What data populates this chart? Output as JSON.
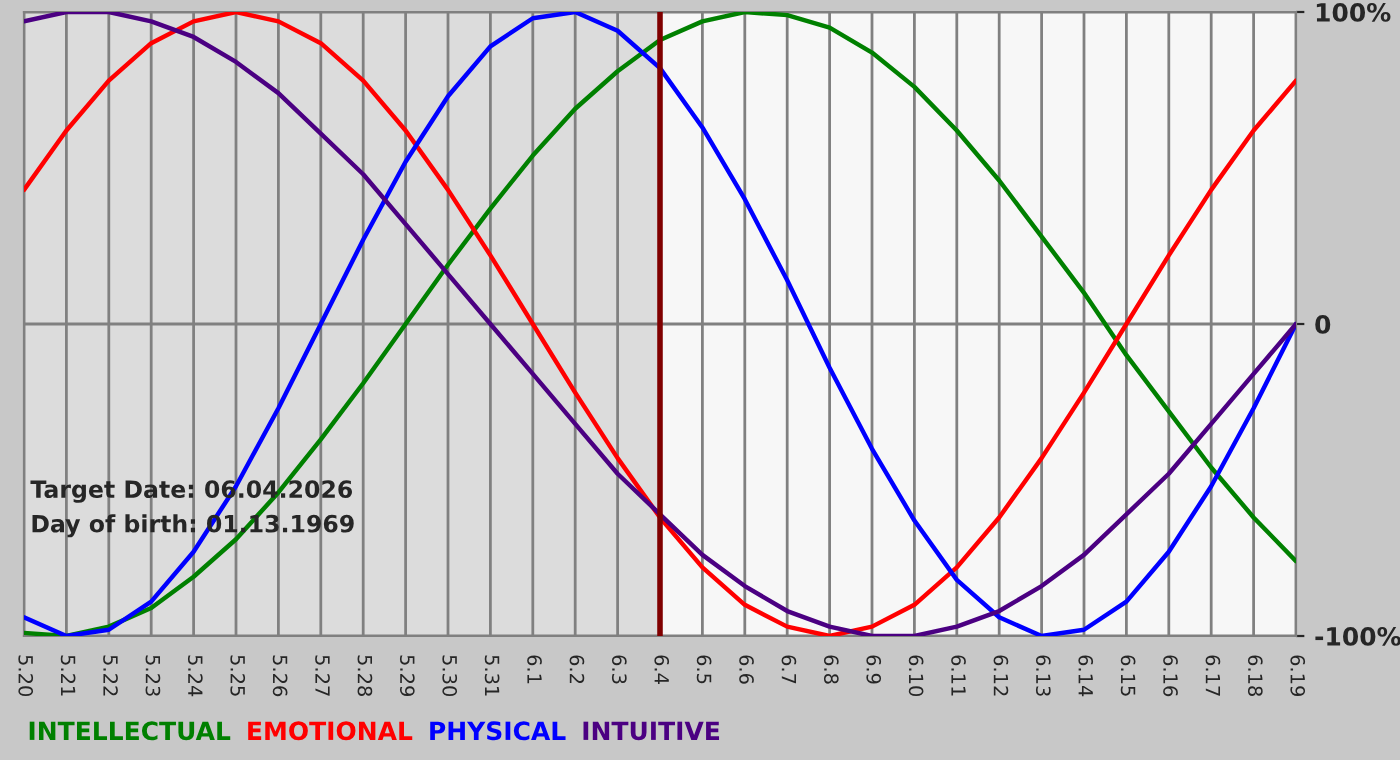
{
  "chart_data": {
    "type": "line",
    "categories": [
      "5.20",
      "5.21",
      "5.22",
      "5.23",
      "5.24",
      "5.25",
      "5.26",
      "5.27",
      "5.28",
      "5.29",
      "5.30",
      "5.31",
      "6.1",
      "6.2",
      "6.3",
      "6.4",
      "6.5",
      "6.6",
      "6.7",
      "6.8",
      "6.9",
      "6.10",
      "6.11",
      "6.12",
      "6.13",
      "6.14",
      "6.15",
      "6.16",
      "6.17",
      "6.18",
      "6.19"
    ],
    "series": [
      {
        "name": "INTELLECTUAL",
        "color": "#008000",
        "values": [
          -99,
          -100,
          -97,
          -91,
          -81,
          -69,
          -54,
          -37,
          -19,
          0,
          19,
          37,
          54,
          69,
          81,
          91,
          97,
          100,
          99,
          95,
          87,
          76,
          62,
          46,
          28,
          10,
          -10,
          -28,
          -46,
          -62,
          -76
        ]
      },
      {
        "name": "EMOTIONAL",
        "color": "#ff0000",
        "values": [
          43,
          62,
          78,
          90,
          97,
          100,
          97,
          90,
          78,
          62,
          43,
          22,
          0,
          -22,
          -43,
          -62,
          -78,
          -90,
          -97,
          -100,
          -97,
          -90,
          -78,
          -62,
          -43,
          -22,
          0,
          22,
          43,
          62,
          78
        ]
      },
      {
        "name": "PHYSICAL",
        "color": "#0000ff",
        "values": [
          -94,
          -100,
          -98,
          -89,
          -73,
          -52,
          -27,
          0,
          27,
          52,
          73,
          89,
          98,
          100,
          94,
          82,
          63,
          40,
          14,
          -14,
          -40,
          -63,
          -82,
          -94,
          -100,
          -98,
          -89,
          -73,
          -52,
          -27,
          0
        ]
      },
      {
        "name": "INTUITIVE",
        "color": "#4b0082",
        "values": [
          97,
          100,
          100,
          97,
          92,
          84,
          74,
          61,
          48,
          32,
          16,
          0,
          -16,
          -32,
          -48,
          -61,
          -74,
          -84,
          -92,
          -97,
          -100,
          -100,
          -97,
          -92,
          -84,
          -74,
          -61,
          -48,
          -32,
          -16,
          0
        ]
      }
    ],
    "ylim": [
      -100,
      100
    ],
    "yticks": [
      {
        "value": 100,
        "label": "100%"
      },
      0,
      {
        "value": -100,
        "label": "-100%"
      }
    ],
    "ref_lines": [
      {
        "axis": "x",
        "value": "6.4",
        "color": "#800000"
      }
    ],
    "bands": [
      {
        "axis": "x",
        "from": "5.20",
        "to": "6.4",
        "color": "#dcdcdc"
      }
    ],
    "annotations": [
      "Target Date: 06.04.2026",
      "Day of birth: 01.13.1969"
    ],
    "grid": true,
    "legend": "bottom left",
    "marker": "none",
    "line_style": "solid"
  }
}
